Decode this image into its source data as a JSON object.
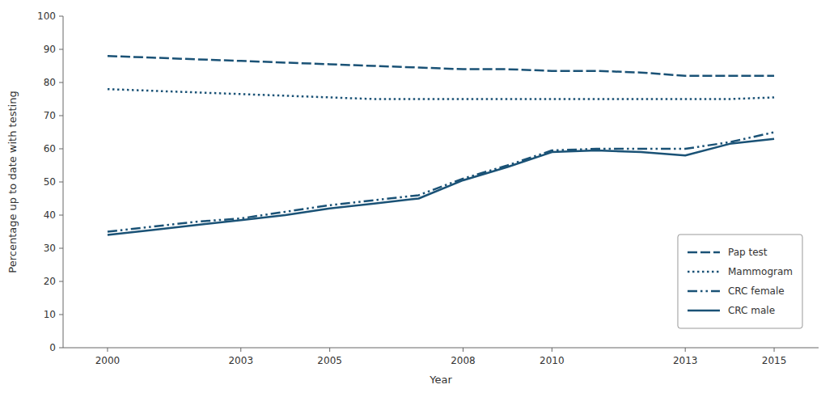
{
  "chart_data": {
    "type": "line",
    "xlabel": "Year",
    "ylabel": "Percentage up to date with testing",
    "x": [
      2000,
      2001,
      2002,
      2003,
      2004,
      2005,
      2006,
      2007,
      2008,
      2009,
      2010,
      2011,
      2012,
      2013,
      2014,
      2015
    ],
    "series": [
      {
        "name": "Pap test",
        "color": "#1a5276",
        "line_style": "dashed",
        "values": [
          88,
          87.5,
          87,
          86.5,
          86,
          85.5,
          85,
          84.5,
          84,
          84,
          83.5,
          83.5,
          83,
          82,
          82,
          82
        ]
      },
      {
        "name": "Mammogram",
        "color": "#1a5276",
        "line_style": "dotted",
        "values": [
          78,
          77.5,
          77,
          76.5,
          76,
          75.5,
          75,
          75,
          75,
          75,
          75,
          75,
          75,
          75,
          75,
          75.5
        ]
      },
      {
        "name": "CRC female",
        "color": "#1a5276",
        "line_style": "dashdotdot",
        "values": [
          35,
          36.5,
          38,
          39,
          41,
          43,
          44.5,
          46,
          51,
          55,
          59.5,
          60,
          60,
          60,
          62,
          65
        ]
      },
      {
        "name": "CRC male",
        "color": "#1a5276",
        "line_style": "solid",
        "values": [
          34,
          35.5,
          37,
          38.5,
          40,
          42,
          43.5,
          45,
          50.5,
          54.5,
          59,
          59.5,
          59,
          58,
          61.5,
          63
        ]
      }
    ],
    "xlim": [
      1999,
      2016
    ],
    "xticks": [
      2000,
      2003,
      2005,
      2008,
      2010,
      2013,
      2015
    ],
    "ylim": [
      0,
      100
    ],
    "yticks": [
      0,
      10,
      20,
      30,
      40,
      50,
      60,
      70,
      80,
      90,
      100
    ],
    "grid": false,
    "legend": "lower right"
  }
}
